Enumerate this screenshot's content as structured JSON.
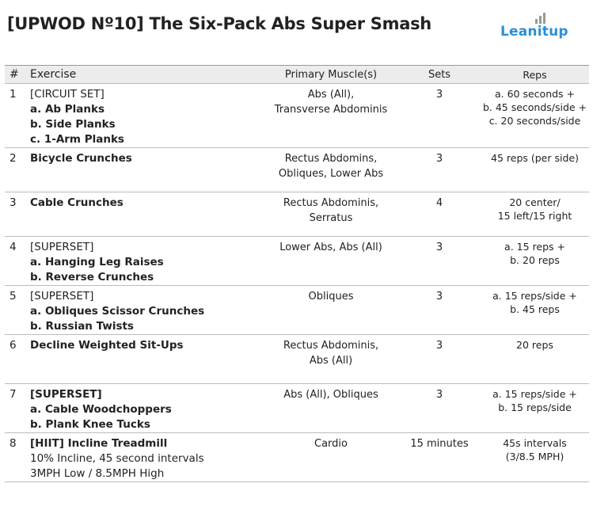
{
  "header": {
    "title": "[UPWOD Nº10] The Six-Pack Abs Super Smash",
    "logo": "Leanitup"
  },
  "table": {
    "columns": [
      "#",
      "Exercise",
      "Primary Muscle(s)",
      "Sets",
      "Reps"
    ],
    "rows": [
      {
        "number": 1,
        "exercise": [
          "[CIRCUIT SET]",
          "a. Ab Planks",
          "b. Side Planks",
          "c. 1-Arm Planks"
        ],
        "muscles": [
          "Abs (All),",
          "Transverse Abdominis"
        ],
        "sets": "3",
        "reps": [
          "a. 60 seconds +",
          "b. 45 seconds/side +",
          "c. 20 seconds/side"
        ]
      },
      {
        "number": 2,
        "exercise": [
          "Bicycle Crunches"
        ],
        "muscles": [
          "Rectus Abdomins,",
          "Obliques, Lower Abs"
        ],
        "sets": "3",
        "reps": [
          "45 reps (per side)"
        ]
      },
      {
        "number": 3,
        "exercise": [
          "Cable Crunches"
        ],
        "muscles": [
          "Rectus Abdominis,",
          "Serratus"
        ],
        "sets": "4",
        "reps": [
          "20 center/",
          "15 left/15 right"
        ]
      },
      {
        "number": 4,
        "exercise": [
          "[SUPERSET]",
          "a. Hanging Leg Raises",
          "b. Reverse Crunches"
        ],
        "muscles": [
          "Lower Abs, Abs (All)"
        ],
        "sets": "3",
        "reps": [
          "a. 15 reps +",
          "b. 20 reps"
        ]
      },
      {
        "number": 5,
        "exercise": [
          "[SUPERSET]",
          "a. Obliques Scissor Crunches",
          "b. Russian Twists"
        ],
        "muscles": [
          "Obliques"
        ],
        "sets": "3",
        "reps": [
          "a. 15 reps/side +",
          "b. 45 reps"
        ]
      },
      {
        "number": 6,
        "exercise": [
          "Decline Weighted Sit-Ups"
        ],
        "muscles": [
          "Rectus Abdominis,",
          "Abs (All)"
        ],
        "sets": "3",
        "reps": [
          "20 reps"
        ]
      },
      {
        "number": 7,
        "exercise": [
          "[SUPERSET]",
          "a. Cable Woodchoppers",
          "b. Plank Knee Tucks"
        ],
        "muscles": [
          "Abs (All), Obliques"
        ],
        "sets": "3",
        "reps": [
          "a. 15 reps/side +",
          "b. 15 reps/side"
        ]
      },
      {
        "number": 8,
        "exercise": [
          "[HIIT] Incline Treadmill",
          "10% Incline, 45 second intervals",
          "3MPH Low / 8.5MPH High"
        ],
        "muscles": [
          "Cardio"
        ],
        "sets": "15 minutes",
        "reps": [
          "45s intervals",
          "(3/8.5 MPH)"
        ]
      }
    ]
  }
}
